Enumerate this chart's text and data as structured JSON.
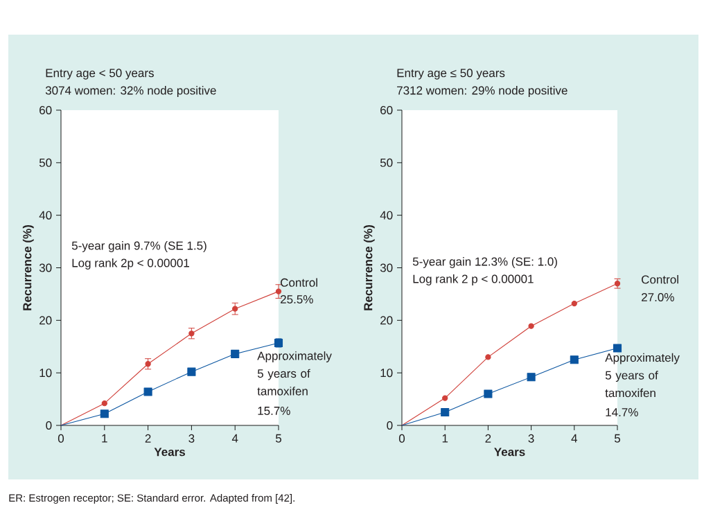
{
  "chart_data": [
    {
      "type": "line",
      "title": "Entry age < 50 years",
      "subtitle": "3074 women: 32% node positive",
      "xlabel": "Years",
      "ylabel": "Recurrence (%)",
      "x": [
        0,
        1,
        2,
        3,
        4,
        5
      ],
      "xlim": [
        0,
        5
      ],
      "xticks": [
        0,
        1,
        2,
        3,
        4,
        5
      ],
      "ylim": [
        0,
        60
      ],
      "yticks": [
        0,
        10,
        20,
        30,
        40,
        50,
        60
      ],
      "series": [
        {
          "name": "Control",
          "color": "#d0403a",
          "marker": "circle",
          "values": [
            0,
            4.2,
            11.7,
            17.5,
            22.2,
            25.5
          ],
          "errors": [
            null,
            null,
            1.0,
            1.0,
            1.1,
            1.3
          ]
        },
        {
          "name": "Approximately 5 years of tamoxifen",
          "color": "#0a55a0",
          "marker": "square",
          "values": [
            0,
            2.2,
            6.4,
            10.2,
            13.6,
            15.7
          ],
          "errors": [
            null,
            null,
            null,
            null,
            null,
            0.8
          ]
        }
      ],
      "annotations": [
        "5-year gain 9.7% (SE 1.5)",
        "Log rank 2p < 0.00001",
        "25.5%",
        "15.7%",
        "ER: Estrogen receptor; SE: Standard error. Adapted from [42]."
      ]
    },
    {
      "type": "line",
      "title": "Entry age ≤ 50 years",
      "subtitle": "7312 women: 29% node positive",
      "xlabel": "Years",
      "ylabel": "Recurrence (%)",
      "x": [
        0,
        1,
        2,
        3,
        4,
        5
      ],
      "xlim": [
        0,
        5
      ],
      "xticks": [
        0,
        1,
        2,
        3,
        4,
        5
      ],
      "ylim": [
        0,
        60
      ],
      "yticks": [
        0,
        10,
        20,
        30,
        40,
        50,
        60
      ],
      "series": [
        {
          "name": "Control",
          "color": "#d0403a",
          "marker": "circle",
          "values": [
            0,
            5.2,
            13.0,
            18.9,
            23.2,
            27.0
          ],
          "errors": [
            null,
            null,
            null,
            null,
            null,
            0.9
          ]
        },
        {
          "name": "Approximately 5 years of tamoxifen",
          "color": "#0a55a0",
          "marker": "square",
          "values": [
            0,
            2.5,
            6.0,
            9.2,
            12.5,
            14.7
          ],
          "errors": [
            null,
            null,
            null,
            null,
            null,
            null
          ]
        }
      ],
      "annotations": [
        "5-year gain 12.3% (SE: 1.0)",
        "Log rank 2 p < 0.00001",
        "27.0%",
        "14.7%"
      ]
    }
  ]
}
